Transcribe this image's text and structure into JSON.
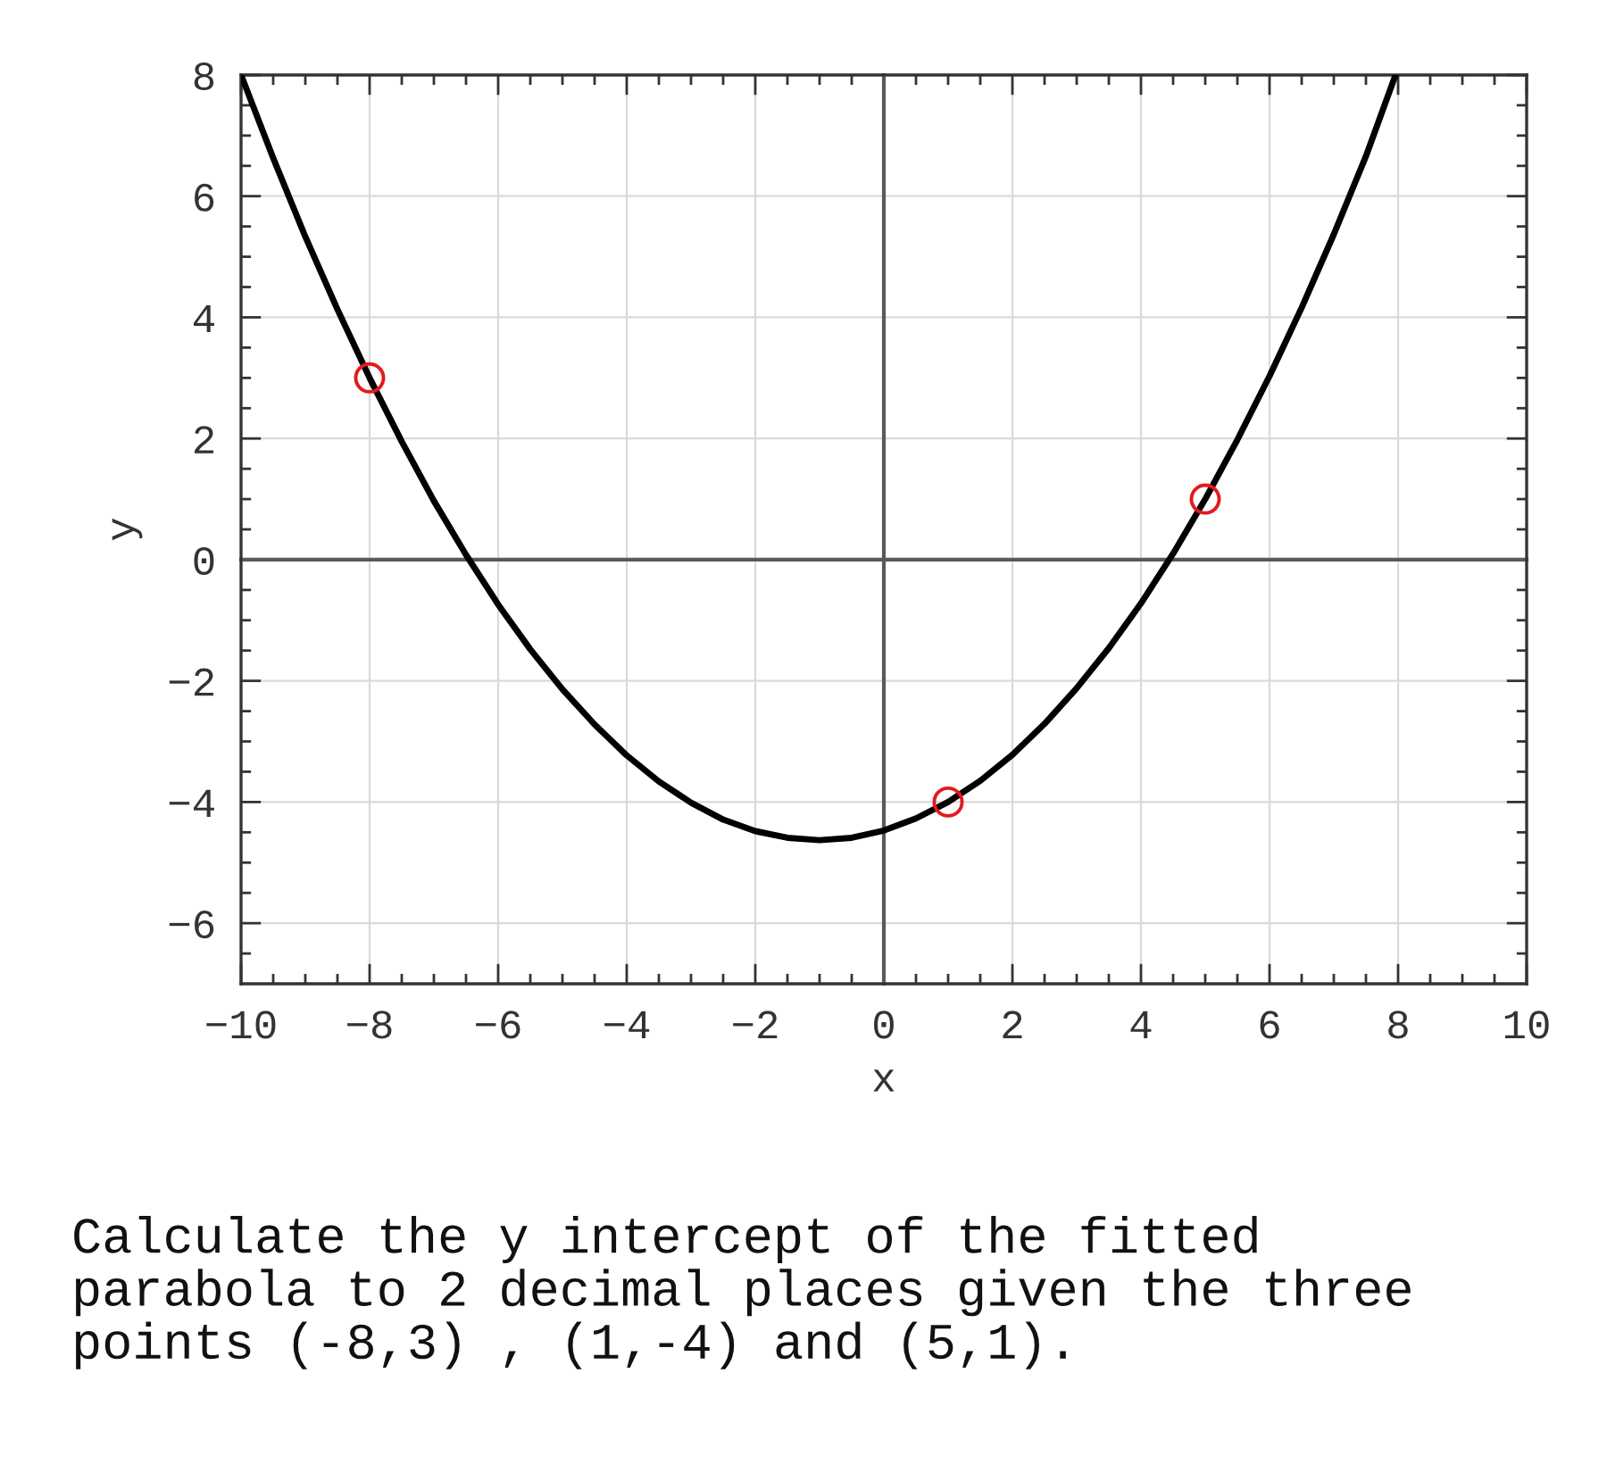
{
  "chart_data": {
    "type": "line",
    "xlabel": "x",
    "ylabel": "y",
    "xlim": [
      -10,
      10
    ],
    "ylim": [
      -7,
      8
    ],
    "xticks": [
      {
        "value": -10,
        "label": "−10"
      },
      {
        "value": -9.5,
        "label": null
      },
      {
        "value": -9,
        "label": null
      },
      {
        "value": -8.5,
        "label": null
      },
      {
        "value": -8,
        "label": "−8"
      },
      {
        "value": -7.5,
        "label": null
      },
      {
        "value": -7,
        "label": null
      },
      {
        "value": -6.5,
        "label": null
      },
      {
        "value": -6,
        "label": "−6"
      },
      {
        "value": -5.5,
        "label": null
      },
      {
        "value": -5,
        "label": null
      },
      {
        "value": -4.5,
        "label": null
      },
      {
        "value": -4,
        "label": "−4"
      },
      {
        "value": -3.5,
        "label": null
      },
      {
        "value": -3,
        "label": null
      },
      {
        "value": -2.5,
        "label": null
      },
      {
        "value": -2,
        "label": "−2"
      },
      {
        "value": -1.5,
        "label": null
      },
      {
        "value": -1,
        "label": null
      },
      {
        "value": -0.5,
        "label": null
      },
      0,
      {
        "value": 0.5,
        "label": null
      },
      {
        "value": 1,
        "label": null
      },
      {
        "value": 1.5,
        "label": null
      },
      2,
      {
        "value": 2.5,
        "label": null
      },
      {
        "value": 3,
        "label": null
      },
      {
        "value": 3.5,
        "label": null
      },
      4,
      {
        "value": 4.5,
        "label": null
      },
      {
        "value": 5,
        "label": null
      },
      {
        "value": 5.5,
        "label": null
      },
      6,
      {
        "value": 6.5,
        "label": null
      },
      {
        "value": 7,
        "label": null
      },
      {
        "value": 7.5,
        "label": null
      },
      8,
      {
        "value": 8.5,
        "label": null
      },
      {
        "value": 9,
        "label": null
      },
      {
        "value": 9.5,
        "label": null
      },
      10
    ],
    "yticks": [
      {
        "value": -6.5,
        "label": null
      },
      {
        "value": -6,
        "label": "−6"
      },
      {
        "value": -5.5,
        "label": null
      },
      {
        "value": -5,
        "label": null
      },
      {
        "value": -4.5,
        "label": null
      },
      {
        "value": -4,
        "label": "−4"
      },
      {
        "value": -3.5,
        "label": null
      },
      {
        "value": -3,
        "label": null
      },
      {
        "value": -2.5,
        "label": null
      },
      {
        "value": -2,
        "label": "−2"
      },
      {
        "value": -1.5,
        "label": null
      },
      {
        "value": -1,
        "label": null
      },
      {
        "value": -0.5,
        "label": null
      },
      0,
      {
        "value": 0.5,
        "label": null
      },
      {
        "value": 1,
        "label": null
      },
      {
        "value": 1.5,
        "label": null
      },
      2,
      {
        "value": 2.5,
        "label": null
      },
      {
        "value": 3,
        "label": null
      },
      {
        "value": 3.5,
        "label": null
      },
      4,
      {
        "value": 4.5,
        "label": null
      },
      {
        "value": 5,
        "label": null
      },
      {
        "value": 5.5,
        "label": null
      },
      6,
      {
        "value": 6.5,
        "label": null
      },
      {
        "value": 7,
        "label": null
      },
      {
        "value": 7.5,
        "label": null
      },
      8
    ],
    "grid": true,
    "series": [
      {
        "type": "line",
        "color": "#000000",
        "marker": "none",
        "line_style": "solid",
        "x": [
          -10,
          -9.5,
          -9,
          -8.5,
          -8,
          -7.5,
          -7,
          -6.5,
          -6,
          -5.5,
          -5,
          -4.5,
          -4,
          -3.5,
          -3,
          -2.5,
          -2,
          -1.5,
          -1,
          -0.5,
          0,
          0.5,
          1,
          1.5,
          2,
          2.5,
          3,
          3.5,
          4,
          4.5,
          5,
          5.5,
          6,
          6.5,
          7,
          7.5,
          7.96
        ],
        "values": [
          8.0,
          6.63,
          5.33,
          4.13,
          3.0,
          1.95,
          0.97,
          0.08,
          -0.74,
          -1.48,
          -2.14,
          -2.72,
          -3.23,
          -3.66,
          -4.01,
          -4.29,
          -4.48,
          -4.59,
          -4.63,
          -4.59,
          -4.47,
          -4.27,
          -4.0,
          -3.65,
          -3.22,
          -2.71,
          -2.12,
          -1.46,
          -0.72,
          0.1,
          1.0,
          1.98,
          3.03,
          4.16,
          5.37,
          6.66,
          8.0
        ]
      },
      {
        "type": "scatter",
        "color": "#e41a1c",
        "marker": "circle",
        "x": [
          -8,
          1,
          5
        ],
        "values": [
          3,
          -4,
          1
        ]
      }
    ],
    "annotations": [
      "Calculate the y intercept of the fitted\nparabola to 2 decimal places given the three\npoints (-8,3) , (1,-4) and (5,1)."
    ]
  }
}
